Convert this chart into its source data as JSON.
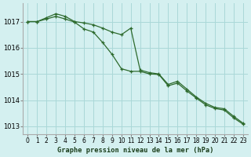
{
  "title": "Graphe pression niveau de la mer (hPa)",
  "background_color": "#d4f0f0",
  "grid_color": "#aad8d8",
  "line_color": "#2d6a2d",
  "marker_color": "#2d6a2d",
  "ylim": [
    1012.7,
    1017.7
  ],
  "yticks": [
    1013,
    1014,
    1015,
    1016,
    1017
  ],
  "xlim": [
    -0.5,
    23.5
  ],
  "xticks": [
    0,
    1,
    2,
    3,
    4,
    5,
    6,
    7,
    8,
    9,
    10,
    11,
    12,
    13,
    14,
    15,
    16,
    17,
    18,
    19,
    20,
    21,
    22,
    23
  ],
  "series1": [
    1017.0,
    1017.0,
    1017.15,
    1017.3,
    1017.2,
    1017.0,
    1016.95,
    1016.88,
    1016.75,
    1016.6,
    1016.5,
    1016.75,
    1015.15,
    1015.05,
    1015.0,
    1014.6,
    1014.72,
    1014.42,
    1014.12,
    1013.88,
    1013.72,
    1013.67,
    1013.38,
    1013.12
  ],
  "series2": [
    1017.0,
    1017.0,
    1017.1,
    1017.2,
    1017.1,
    1016.98,
    1016.72,
    1016.6,
    1016.2,
    1015.75,
    1015.2,
    1015.1,
    1015.1,
    1015.0,
    1014.98,
    1014.55,
    1014.65,
    1014.35,
    1014.08,
    1013.82,
    1013.68,
    1013.62,
    1013.32,
    1013.08
  ]
}
